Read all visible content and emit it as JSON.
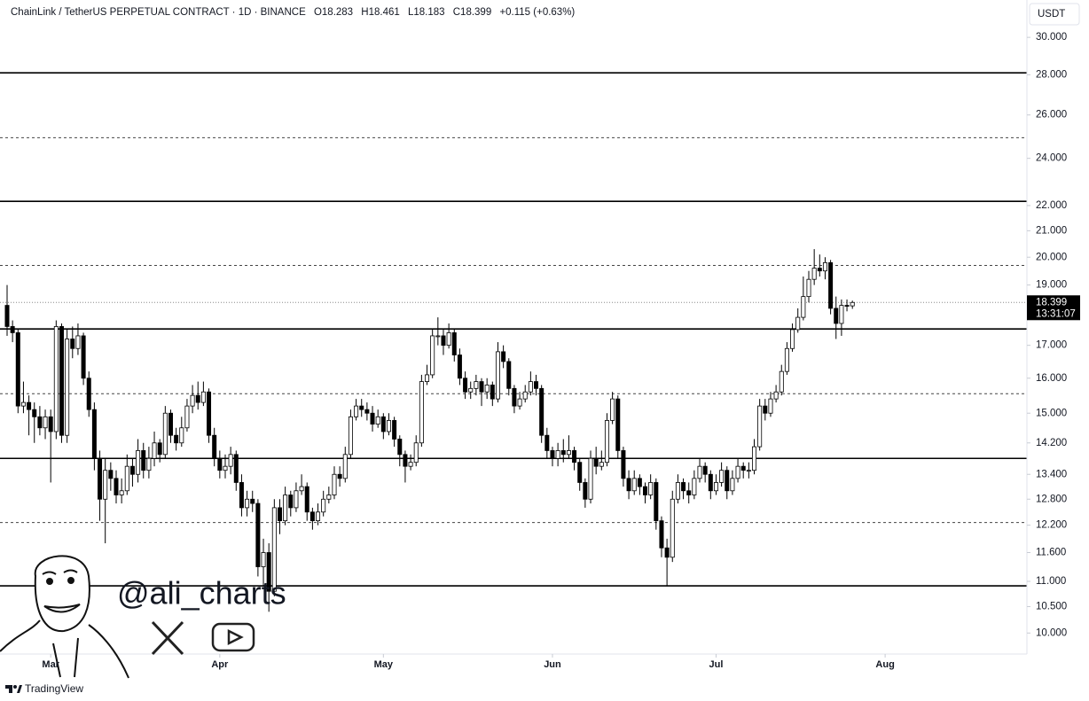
{
  "chart_data": {
    "type": "candlestick",
    "symbol": "ChainLink / TetherUS PERPETUAL CONTRACT · 1D · BINANCE",
    "ohlc_legend": [
      "O18.283",
      "H18.461",
      "L18.183",
      "C18.399"
    ],
    "change": "+0.115 (+0.63%)",
    "currency": "USDT",
    "countdown": "13:31:07",
    "last_price": 18.399,
    "watermark": "@ali_charts",
    "brand": "TradingView",
    "log_scale": true,
    "up_color": "#ffffff",
    "down_color": "#000000",
    "wick_color": "#000000",
    "ylim": [
      9.62,
      32.14
    ],
    "yticks": [
      {
        "value": 30,
        "label": "30.000"
      },
      {
        "value": 28,
        "label": "28.000"
      },
      {
        "value": 26,
        "label": "26.000"
      },
      {
        "value": 24,
        "label": "24.000"
      },
      {
        "value": 22,
        "label": "22.000"
      },
      {
        "value": 21,
        "label": "21.000"
      },
      {
        "value": 20,
        "label": "20.000"
      },
      {
        "value": 19,
        "label": "19.000"
      },
      {
        "value": 17,
        "label": "17.000"
      },
      {
        "value": 16,
        "label": "16.000"
      },
      {
        "value": 15,
        "label": "15.000"
      },
      {
        "value": 14.2,
        "label": "14.200"
      },
      {
        "value": 13.4,
        "label": "13.400"
      },
      {
        "value": 12.8,
        "label": "12.800"
      },
      {
        "value": 12.2,
        "label": "12.200"
      },
      {
        "value": 11.6,
        "label": "11.600"
      },
      {
        "value": 11,
        "label": "11.000"
      },
      {
        "value": 10.5,
        "label": "10.500"
      },
      {
        "value": 10,
        "label": "10.000"
      }
    ],
    "xlim": [
      -1.3,
      187
    ],
    "xticks": [
      {
        "value": 8,
        "label": "Mar"
      },
      {
        "value": 39,
        "label": "Apr"
      },
      {
        "value": 69,
        "label": "May"
      },
      {
        "value": 100,
        "label": "Jun"
      },
      {
        "value": 130,
        "label": "Jul"
      },
      {
        "value": 161,
        "label": "Aug"
      }
    ],
    "levels": [
      {
        "value": 28.1,
        "style": "solid"
      },
      {
        "value": 24.93,
        "style": "dashed"
      },
      {
        "value": 22.17,
        "style": "solid"
      },
      {
        "value": 19.7,
        "style": "dashed"
      },
      {
        "value": 17.52,
        "style": "solid"
      },
      {
        "value": 15.55,
        "style": "dashed"
      },
      {
        "value": 13.8,
        "style": "solid"
      },
      {
        "value": 12.26,
        "style": "dashed"
      },
      {
        "value": 10.91,
        "style": "solid"
      }
    ],
    "ohlc": [
      [
        18.3,
        19.0,
        17.3,
        17.6
      ],
      [
        17.6,
        17.8,
        17.1,
        17.4
      ],
      [
        17.4,
        17.5,
        15.0,
        15.2
      ],
      [
        15.2,
        15.9,
        15.0,
        15.3
      ],
      [
        15.3,
        15.5,
        14.4,
        15.1
      ],
      [
        15.1,
        15.3,
        14.2,
        14.9
      ],
      [
        14.9,
        15.2,
        14.4,
        14.6
      ],
      [
        14.6,
        15.1,
        14.3,
        14.9
      ],
      [
        14.9,
        15.1,
        13.2,
        14.5
      ],
      [
        14.5,
        17.8,
        14.3,
        17.6
      ],
      [
        17.6,
        17.7,
        14.2,
        14.4
      ],
      [
        14.4,
        17.5,
        14.2,
        17.2
      ],
      [
        17.2,
        17.6,
        16.6,
        16.9
      ],
      [
        16.9,
        17.7,
        16.7,
        17.3
      ],
      [
        17.3,
        17.4,
        15.8,
        16.0
      ],
      [
        16.0,
        16.2,
        14.9,
        15.1
      ],
      [
        15.1,
        15.3,
        13.5,
        13.8
      ],
      [
        13.8,
        14.0,
        12.3,
        12.8
      ],
      [
        12.8,
        13.8,
        11.8,
        13.5
      ],
      [
        13.5,
        13.7,
        13.0,
        13.3
      ],
      [
        13.3,
        13.5,
        12.7,
        12.9
      ],
      [
        12.9,
        13.3,
        12.7,
        13.0
      ],
      [
        13.0,
        13.9,
        12.9,
        13.6
      ],
      [
        13.6,
        13.8,
        13.1,
        13.4
      ],
      [
        13.4,
        14.3,
        13.2,
        14.0
      ],
      [
        14.0,
        14.2,
        13.3,
        13.5
      ],
      [
        13.5,
        14.1,
        13.3,
        13.8
      ],
      [
        13.8,
        14.5,
        13.6,
        14.2
      ],
      [
        14.2,
        14.3,
        13.7,
        13.9
      ],
      [
        13.9,
        15.2,
        13.8,
        15.0
      ],
      [
        15.0,
        15.1,
        14.2,
        14.4
      ],
      [
        14.4,
        14.6,
        14.0,
        14.2
      ],
      [
        14.2,
        14.9,
        14.1,
        14.6
      ],
      [
        14.6,
        15.4,
        14.5,
        15.2
      ],
      [
        15.2,
        15.8,
        15.0,
        15.5
      ],
      [
        15.5,
        15.9,
        15.1,
        15.3
      ],
      [
        15.3,
        15.9,
        15.2,
        15.6
      ],
      [
        15.6,
        15.7,
        14.2,
        14.4
      ],
      [
        14.4,
        14.6,
        13.6,
        13.8
      ],
      [
        13.8,
        14.0,
        13.3,
        13.5
      ],
      [
        13.5,
        13.9,
        13.3,
        13.6
      ],
      [
        13.6,
        14.1,
        13.4,
        13.9
      ],
      [
        13.9,
        14.0,
        13.0,
        13.2
      ],
      [
        13.2,
        13.4,
        12.4,
        12.6
      ],
      [
        12.6,
        13.0,
        12.4,
        12.8
      ],
      [
        12.8,
        13.0,
        12.5,
        12.7
      ],
      [
        12.7,
        12.8,
        11.1,
        11.3
      ],
      [
        11.3,
        11.9,
        10.9,
        11.6
      ],
      [
        11.6,
        11.8,
        10.4,
        10.8
      ],
      [
        10.8,
        12.8,
        10.7,
        12.6
      ],
      [
        12.6,
        12.8,
        12.0,
        12.3
      ],
      [
        12.3,
        13.1,
        12.2,
        12.9
      ],
      [
        12.9,
        13.0,
        12.4,
        12.6
      ],
      [
        12.6,
        13.2,
        12.5,
        13.0
      ],
      [
        13.0,
        13.4,
        12.9,
        13.1
      ],
      [
        13.1,
        13.2,
        12.3,
        12.5
      ],
      [
        12.5,
        12.6,
        12.1,
        12.3
      ],
      [
        12.3,
        12.7,
        12.2,
        12.5
      ],
      [
        12.5,
        13.0,
        12.4,
        12.8
      ],
      [
        12.8,
        13.1,
        12.7,
        12.9
      ],
      [
        12.9,
        13.6,
        12.8,
        13.4
      ],
      [
        13.4,
        13.6,
        13.1,
        13.3
      ],
      [
        13.3,
        14.1,
        13.2,
        13.9
      ],
      [
        13.9,
        15.1,
        13.8,
        14.9
      ],
      [
        14.9,
        15.4,
        14.8,
        15.2
      ],
      [
        15.2,
        15.4,
        14.9,
        15.1
      ],
      [
        15.1,
        15.3,
        14.8,
        15.0
      ],
      [
        15.0,
        15.2,
        14.5,
        14.7
      ],
      [
        14.7,
        15.1,
        14.6,
        14.9
      ],
      [
        14.9,
        15.0,
        14.3,
        14.5
      ],
      [
        14.5,
        15.0,
        14.4,
        14.8
      ],
      [
        14.8,
        14.9,
        14.1,
        14.3
      ],
      [
        14.3,
        14.4,
        13.6,
        13.9
      ],
      [
        13.9,
        14.0,
        13.2,
        13.6
      ],
      [
        13.6,
        13.9,
        13.5,
        13.7
      ],
      [
        13.7,
        14.4,
        13.6,
        14.2
      ],
      [
        14.2,
        16.1,
        14.1,
        15.9
      ],
      [
        15.9,
        16.4,
        15.8,
        16.1
      ],
      [
        16.1,
        17.5,
        16.0,
        17.3
      ],
      [
        17.3,
        17.9,
        17.0,
        17.3
      ],
      [
        17.3,
        17.5,
        16.7,
        17.0
      ],
      [
        17.0,
        17.7,
        16.9,
        17.4
      ],
      [
        17.4,
        17.5,
        16.5,
        16.7
      ],
      [
        16.7,
        16.9,
        15.8,
        16.0
      ],
      [
        16.0,
        16.2,
        15.4,
        15.6
      ],
      [
        15.6,
        15.9,
        15.4,
        15.7
      ],
      [
        15.7,
        16.1,
        15.5,
        15.9
      ],
      [
        15.9,
        16.0,
        15.2,
        15.6
      ],
      [
        15.6,
        16.0,
        15.4,
        15.8
      ],
      [
        15.8,
        15.9,
        15.2,
        15.4
      ],
      [
        15.4,
        17.1,
        15.3,
        16.8
      ],
      [
        16.8,
        17.0,
        16.3,
        16.5
      ],
      [
        16.5,
        16.6,
        15.5,
        15.7
      ],
      [
        15.7,
        15.8,
        15.0,
        15.2
      ],
      [
        15.2,
        15.6,
        15.1,
        15.4
      ],
      [
        15.4,
        15.8,
        15.3,
        15.6
      ],
      [
        15.6,
        16.2,
        15.5,
        15.9
      ],
      [
        15.9,
        16.1,
        15.5,
        15.7
      ],
      [
        15.7,
        15.8,
        14.2,
        14.4
      ],
      [
        14.4,
        14.6,
        13.8,
        14.0
      ],
      [
        14.0,
        14.1,
        13.6,
        13.8
      ],
      [
        13.8,
        14.2,
        13.6,
        14.0
      ],
      [
        14.0,
        14.3,
        13.7,
        13.9
      ],
      [
        13.9,
        14.4,
        13.8,
        14.0
      ],
      [
        14.0,
        14.1,
        13.5,
        13.7
      ],
      [
        13.7,
        13.8,
        13.0,
        13.2
      ],
      [
        13.2,
        13.3,
        12.6,
        12.8
      ],
      [
        12.8,
        14.0,
        12.7,
        13.8
      ],
      [
        13.8,
        14.1,
        13.4,
        13.6
      ],
      [
        13.6,
        14.0,
        13.5,
        13.7
      ],
      [
        13.7,
        15.0,
        13.6,
        14.8
      ],
      [
        14.8,
        15.6,
        14.7,
        15.4
      ],
      [
        15.4,
        15.5,
        13.8,
        14.0
      ],
      [
        14.0,
        14.1,
        13.1,
        13.3
      ],
      [
        13.3,
        13.5,
        12.8,
        13.0
      ],
      [
        13.0,
        13.5,
        12.9,
        13.3
      ],
      [
        13.3,
        13.4,
        12.9,
        13.1
      ],
      [
        13.1,
        13.2,
        12.7,
        12.9
      ],
      [
        12.9,
        13.4,
        12.8,
        13.2
      ],
      [
        13.2,
        13.3,
        12.1,
        12.3
      ],
      [
        12.3,
        12.4,
        11.5,
        11.7
      ],
      [
        11.7,
        11.9,
        10.9,
        11.5
      ],
      [
        11.5,
        13.0,
        11.4,
        12.8
      ],
      [
        12.8,
        13.4,
        12.7,
        13.2
      ],
      [
        13.2,
        13.3,
        12.8,
        13.0
      ],
      [
        13.0,
        13.2,
        12.7,
        12.9
      ],
      [
        12.9,
        13.5,
        12.8,
        13.3
      ],
      [
        13.3,
        13.8,
        13.2,
        13.6
      ],
      [
        13.6,
        13.7,
        13.2,
        13.4
      ],
      [
        13.4,
        13.5,
        12.8,
        13.0
      ],
      [
        13.0,
        13.4,
        12.9,
        13.2
      ],
      [
        13.2,
        13.7,
        13.1,
        13.5
      ],
      [
        13.5,
        13.6,
        12.8,
        13.0
      ],
      [
        13.0,
        13.5,
        12.9,
        13.3
      ],
      [
        13.3,
        13.8,
        13.2,
        13.6
      ],
      [
        13.6,
        13.7,
        13.3,
        13.5
      ],
      [
        13.5,
        13.7,
        13.3,
        13.5
      ],
      [
        13.5,
        14.3,
        13.4,
        14.1
      ],
      [
        14.1,
        15.4,
        14.0,
        15.2
      ],
      [
        15.2,
        15.4,
        14.8,
        15.0
      ],
      [
        15.0,
        15.6,
        14.9,
        15.4
      ],
      [
        15.4,
        15.8,
        15.3,
        15.6
      ],
      [
        15.6,
        16.4,
        15.5,
        16.2
      ],
      [
        16.2,
        17.1,
        16.1,
        16.9
      ],
      [
        16.9,
        17.7,
        16.8,
        17.5
      ],
      [
        17.5,
        18.2,
        17.4,
        17.9
      ],
      [
        17.9,
        19.3,
        17.8,
        18.6
      ],
      [
        18.6,
        19.5,
        18.4,
        19.2
      ],
      [
        19.2,
        20.3,
        19.0,
        19.6
      ],
      [
        19.6,
        20.1,
        19.3,
        19.5
      ],
      [
        19.5,
        20.0,
        19.2,
        19.8
      ],
      [
        19.8,
        19.9,
        18.0,
        18.2
      ],
      [
        18.2,
        18.6,
        17.2,
        17.7
      ],
      [
        17.7,
        18.5,
        17.3,
        18.3
      ],
      [
        18.3,
        18.5,
        18.1,
        18.28
      ],
      [
        18.283,
        18.461,
        18.183,
        18.399
      ]
    ]
  }
}
